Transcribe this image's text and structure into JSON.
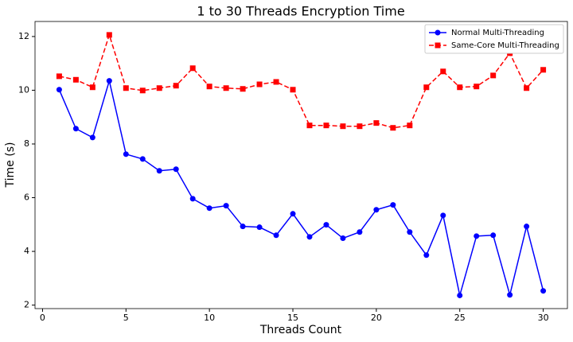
{
  "chart_data": {
    "type": "line",
    "title": "1 to 30 Threads Encryption Time",
    "x_label": "Threads Count",
    "y_label": "Time (s)",
    "x": [
      1,
      2,
      3,
      4,
      5,
      6,
      7,
      8,
      9,
      10,
      11,
      12,
      13,
      14,
      15,
      16,
      17,
      18,
      19,
      20,
      21,
      22,
      23,
      24,
      25,
      26,
      27,
      28,
      29,
      30
    ],
    "series": [
      {
        "name": "Normal Multi-Threading",
        "color": "#0000ff",
        "linestyle": "solid",
        "marker": "circle",
        "values": [
          10.02,
          8.57,
          8.24,
          10.35,
          7.62,
          7.44,
          7.0,
          7.06,
          5.96,
          5.61,
          5.7,
          4.93,
          4.9,
          4.6,
          5.4,
          4.54,
          4.99,
          4.49,
          4.72,
          5.55,
          5.73,
          4.72,
          3.86,
          5.34,
          2.36,
          4.57,
          4.6,
          2.38,
          4.93,
          2.53
        ]
      },
      {
        "name": "Same-Core Multi-Threading",
        "color": "#ff0000",
        "linestyle": "dashed",
        "marker": "square",
        "values": [
          10.52,
          10.39,
          10.11,
          12.06,
          10.08,
          9.99,
          10.08,
          10.17,
          10.82,
          10.14,
          10.08,
          10.05,
          10.22,
          10.31,
          10.02,
          8.69,
          8.69,
          8.66,
          8.66,
          8.78,
          8.6,
          8.69,
          10.11,
          10.7,
          10.11,
          10.14,
          10.55,
          11.38,
          10.08,
          10.76
        ]
      }
    ],
    "xlim": [
      -0.45,
      31.45
    ],
    "xticks": [
      0,
      5,
      10,
      15,
      20,
      25,
      30
    ],
    "ylim": [
      1.87,
      12.56
    ],
    "yticks": [
      2,
      4,
      6,
      8,
      10,
      12
    ],
    "legend": "upper right"
  }
}
